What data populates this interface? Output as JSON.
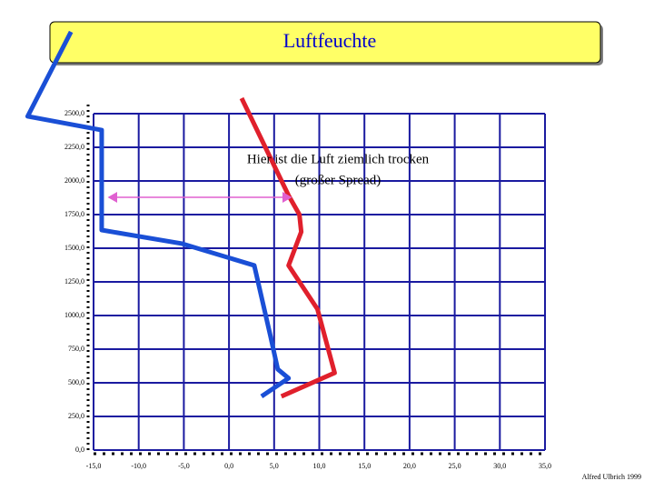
{
  "chart_data": {
    "type": "line",
    "title": "Luftfeuchte",
    "annotation": [
      "Hier ist die Luft ziemlich trocken",
      "(großer Spread)"
    ],
    "footer": "Alfred Ulbrich 1999",
    "xlim": [
      -15,
      35
    ],
    "ylim": [
      0,
      2500
    ],
    "xticks": [
      {
        "value": -15,
        "label": "-15,0"
      },
      {
        "value": -10,
        "label": "-10,0"
      },
      {
        "value": -5,
        "label": "-5,0"
      },
      {
        "value": 0,
        "label": "0,0"
      },
      {
        "value": 5,
        "label": "5,0"
      },
      {
        "value": 10,
        "label": "10,0"
      },
      {
        "value": 15,
        "label": "15,0"
      },
      {
        "value": 20,
        "label": "20,0"
      },
      {
        "value": 25,
        "label": "25,0"
      },
      {
        "value": 30,
        "label": "30,0"
      },
      {
        "value": 35,
        "label": "35,0"
      }
    ],
    "yticks": [
      {
        "value": 0,
        "label": "0,0"
      },
      {
        "value": 250,
        "label": "250,0"
      },
      {
        "value": 500,
        "label": "500,0"
      },
      {
        "value": 750,
        "label": "750,0"
      },
      {
        "value": 1000,
        "label": "1000,0"
      },
      {
        "value": 1250,
        "label": "1250,0"
      },
      {
        "value": 1500,
        "label": "1500,0"
      },
      {
        "value": 1750,
        "label": "1750,0"
      },
      {
        "value": 2000,
        "label": "2000,0"
      },
      {
        "value": 2250,
        "label": "2250,0"
      },
      {
        "value": 2500,
        "label": "2500,0"
      }
    ],
    "grid": true,
    "series": [
      {
        "color": "#e0202c",
        "x": [
          1.4,
          3.2,
          6.6,
          7.8,
          8.0,
          6.6,
          9.8,
          11.7,
          5.8
        ],
        "values": [
          2615,
          2365,
          1892,
          1750,
          1622,
          1372,
          1047,
          574,
          399
        ]
      },
      {
        "color": "#1a4fd6",
        "x": [
          -17.5,
          -22.3,
          -14.1,
          -14.1,
          -5.2,
          2.8,
          4.6,
          5.4,
          6.6,
          3.6
        ],
        "values": [
          3108,
          2480,
          2378,
          1635,
          1534,
          1372,
          845,
          601,
          534,
          399
        ]
      }
    ]
  }
}
